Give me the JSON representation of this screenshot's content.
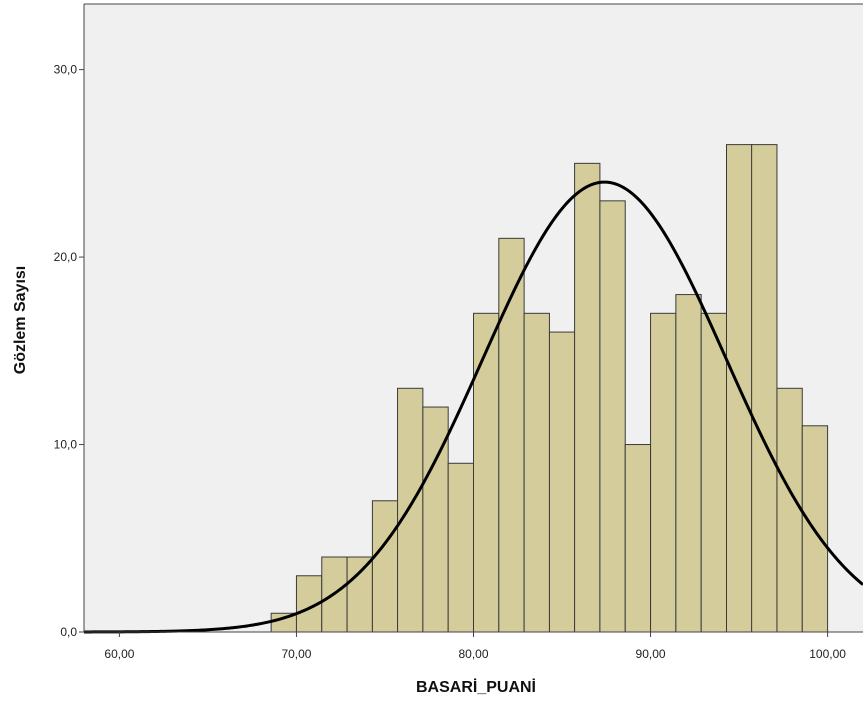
{
  "chart_data": {
    "type": "bar",
    "subtype": "histogram",
    "xlabel": "BASARİ_PUANİ",
    "ylabel": "Gözlem Sayısı",
    "xlim": [
      58,
      102
    ],
    "ylim": [
      0,
      33.5
    ],
    "x_ticks": [
      {
        "value": 60,
        "label": "60,00"
      },
      {
        "value": 70,
        "label": "70,00"
      },
      {
        "value": 80,
        "label": "80,00"
      },
      {
        "value": 90,
        "label": "90,00"
      },
      {
        "value": 100,
        "label": "100,00"
      }
    ],
    "y_ticks": [
      {
        "value": 0,
        "label": "0,0"
      },
      {
        "value": 10,
        "label": "10,0"
      },
      {
        "value": 20,
        "label": "20,0"
      },
      {
        "value": 30,
        "label": "30,0"
      }
    ],
    "bin_width": 1.43,
    "bins": [
      {
        "start": 68.57,
        "count": 1
      },
      {
        "start": 70.0,
        "count": 3
      },
      {
        "start": 71.43,
        "count": 4
      },
      {
        "start": 72.86,
        "count": 4
      },
      {
        "start": 74.29,
        "count": 7
      },
      {
        "start": 75.71,
        "count": 13
      },
      {
        "start": 77.14,
        "count": 12
      },
      {
        "start": 78.57,
        "count": 9
      },
      {
        "start": 80.0,
        "count": 17
      },
      {
        "start": 81.43,
        "count": 21
      },
      {
        "start": 82.86,
        "count": 17
      },
      {
        "start": 84.29,
        "count": 16
      },
      {
        "start": 85.71,
        "count": 25
      },
      {
        "start": 87.14,
        "count": 23
      },
      {
        "start": 88.57,
        "count": 10
      },
      {
        "start": 90.0,
        "count": 17
      },
      {
        "start": 91.43,
        "count": 18
      },
      {
        "start": 92.86,
        "count": 17
      },
      {
        "start": 94.29,
        "count": 26
      },
      {
        "start": 95.71,
        "count": 26
      },
      {
        "start": 97.14,
        "count": 13
      },
      {
        "start": 98.57,
        "count": 11
      }
    ],
    "normal_curve": {
      "mean": 87.4,
      "sd": 6.88,
      "peak": 24.0
    },
    "grid": false,
    "colors": {
      "plot_background": "#f0f0f0",
      "bar_fill": "#d4cc9a",
      "bar_stroke": "#3a3a3a",
      "curve": "#000000"
    }
  }
}
